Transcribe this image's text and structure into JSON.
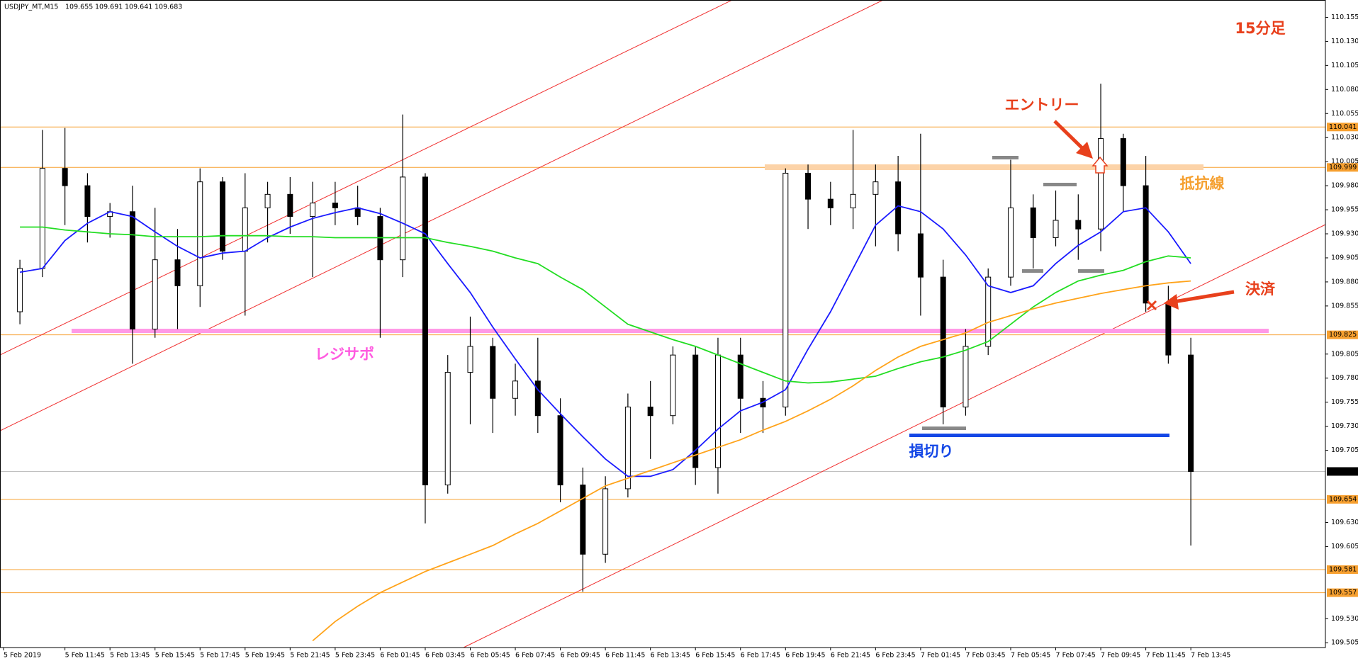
{
  "chart_data": {
    "type": "candlestick",
    "title": "USDJPY_MT,M15",
    "header_values": [
      109.655,
      109.691,
      109.641,
      109.683
    ],
    "categories": [
      "5 Feb 2019",
      null,
      "5 Feb 11:45",
      null,
      "5 Feb 13:45",
      null,
      "5 Feb 15:45",
      null,
      "5 Feb 17:45",
      null,
      "5 Feb 19:45",
      null,
      "5 Feb 21:45",
      null,
      "5 Feb 23:45",
      null,
      "6 Feb 01:45",
      null,
      "6 Feb 03:45",
      null,
      "6 Feb 05:45",
      null,
      "6 Feb 07:45",
      null,
      "6 Feb 09:45",
      null,
      "6 Feb 11:45",
      null,
      "6 Feb 13:45",
      null,
      "6 Feb 15:45",
      null,
      "6 Feb 17:45",
      null,
      "6 Feb 19:45",
      null,
      "6 Feb 21:45",
      null,
      "6 Feb 23:45",
      null,
      "7 Feb 01:45",
      null,
      "7 Feb 03:45",
      null,
      "7 Feb 05:45",
      null,
      "7 Feb 07:45",
      null,
      "7 Feb 09:45",
      null,
      "7 Feb 11:45",
      null,
      "7 Feb 13:45"
    ],
    "open": [
      109.849,
      109.894,
      109.998,
      109.98,
      109.948,
      109.953,
      109.831,
      109.903,
      109.876,
      109.984,
      109.912,
      109.957,
      109.971,
      109.948,
      109.962,
      109.957,
      109.948,
      109.903,
      109.989,
      109.669,
      109.786,
      109.813,
      109.759,
      109.777,
      109.741,
      109.669,
      109.597,
      109.665,
      109.75,
      109.741,
      109.804,
      109.687,
      109.804,
      109.759,
      109.75,
      109.993,
      109.966,
      109.957,
      109.971,
      109.984,
      109.93,
      109.885,
      109.75,
      109.813,
      109.885,
      109.957,
      109.926,
      109.944,
      109.935,
      110.029,
      109.98,
      109.858,
      109.804
    ],
    "high": [
      109.903,
      110.038,
      110.04,
      109.993,
      109.962,
      109.98,
      109.957,
      109.935,
      109.998,
      109.989,
      109.993,
      109.984,
      109.989,
      109.984,
      109.984,
      109.98,
      109.957,
      110.054,
      109.993,
      109.804,
      109.844,
      109.822,
      109.795,
      109.822,
      109.759,
      109.687,
      109.678,
      109.764,
      109.777,
      109.813,
      109.813,
      109.822,
      109.822,
      109.777,
      109.998,
      110.002,
      109.984,
      110.038,
      110.002,
      110.011,
      110.034,
      109.903,
      109.831,
      109.894,
      110.007,
      109.971,
      109.975,
      109.971,
      110.086,
      110.034,
      110.011,
      109.876,
      109.822
    ],
    "low": [
      109.836,
      109.885,
      109.939,
      109.921,
      109.926,
      109.795,
      109.822,
      109.831,
      109.854,
      109.903,
      109.845,
      109.921,
      109.93,
      109.885,
      109.939,
      109.939,
      109.822,
      109.885,
      109.629,
      109.66,
      109.732,
      109.723,
      109.741,
      109.723,
      109.651,
      109.558,
      109.588,
      109.656,
      109.696,
      109.732,
      109.669,
      109.66,
      109.723,
      109.723,
      109.741,
      109.935,
      109.939,
      109.935,
      109.917,
      109.912,
      109.845,
      109.732,
      109.741,
      109.804,
      109.876,
      109.894,
      109.917,
      109.903,
      109.912,
      109.953,
      109.849,
      109.795,
      109.606
    ],
    "close": [
      109.894,
      109.998,
      109.98,
      109.948,
      109.953,
      109.831,
      109.903,
      109.876,
      109.984,
      109.912,
      109.957,
      109.971,
      109.948,
      109.962,
      109.957,
      109.948,
      109.903,
      109.989,
      109.669,
      109.786,
      109.813,
      109.759,
      109.777,
      109.741,
      109.669,
      109.597,
      109.665,
      109.75,
      109.741,
      109.804,
      109.687,
      109.804,
      109.759,
      109.75,
      109.993,
      109.966,
      109.957,
      109.971,
      109.984,
      109.93,
      109.885,
      109.75,
      109.813,
      109.885,
      109.957,
      109.926,
      109.944,
      109.935,
      110.029,
      109.98,
      109.858,
      109.804,
      109.683
    ],
    "up_color": "#ffffff",
    "down_color": "#000000",
    "lines": [
      {
        "color": "#1a1aff",
        "values": [
          109.89,
          109.894,
          109.923,
          109.941,
          109.953,
          109.948,
          109.932,
          109.917,
          109.905,
          109.91,
          109.912,
          109.926,
          109.937,
          109.946,
          109.952,
          109.957,
          109.951,
          109.941,
          109.93,
          109.899,
          109.869,
          109.833,
          109.8,
          109.768,
          109.743,
          109.719,
          109.696,
          109.678,
          109.678,
          109.685,
          109.705,
          109.727,
          109.746,
          109.755,
          109.768,
          109.81,
          109.849,
          109.894,
          109.939,
          109.959,
          109.953,
          109.935,
          109.908,
          109.876,
          109.869,
          109.876,
          109.899,
          109.918,
          109.932,
          109.953,
          109.957,
          109.932,
          109.899
        ]
      },
      {
        "color": "#22dd22",
        "values": [
          109.937,
          109.937,
          109.934,
          109.932,
          109.93,
          109.929,
          109.927,
          109.927,
          109.927,
          109.928,
          109.928,
          109.928,
          109.927,
          109.927,
          109.926,
          109.926,
          109.926,
          109.926,
          109.926,
          109.921,
          109.917,
          109.912,
          109.905,
          109.899,
          109.885,
          109.872,
          109.854,
          109.836,
          109.828,
          109.82,
          109.813,
          109.804,
          109.795,
          109.786,
          109.777,
          109.775,
          109.776,
          109.779,
          109.782,
          109.79,
          109.797,
          109.802,
          109.809,
          109.818,
          109.836,
          109.854,
          109.869,
          109.881,
          109.887,
          109.892,
          109.901,
          109.907,
          109.905
        ]
      },
      {
        "color": "#ffa31a",
        "values": [
          null,
          null,
          null,
          null,
          null,
          null,
          null,
          null,
          null,
          null,
          null,
          null,
          null,
          109.507,
          109.527,
          109.543,
          109.557,
          109.568,
          109.579,
          109.588,
          109.597,
          109.606,
          109.618,
          109.629,
          109.642,
          109.655,
          109.668,
          109.676,
          109.684,
          109.692,
          109.7,
          109.708,
          109.716,
          109.726,
          109.735,
          109.746,
          109.758,
          109.772,
          109.788,
          109.802,
          109.813,
          109.82,
          109.827,
          109.838,
          109.845,
          109.852,
          109.858,
          109.863,
          109.868,
          109.872,
          109.876,
          109.879,
          109.881
        ]
      }
    ],
    "ylim": [
      109.5,
      110.173
    ],
    "yticks": [
      110.155,
      {
        "value": 110.13,
        "label": "110.130"
      },
      110.105,
      {
        "value": 110.08,
        "label": "110.080"
      },
      110.055,
      {
        "value": 110.03,
        "label": "110.030"
      },
      110.005,
      {
        "value": 109.98,
        "label": "109.980"
      },
      109.955,
      {
        "value": 109.93,
        "label": "109.930"
      },
      109.905,
      {
        "value": 109.88,
        "label": "109.880"
      },
      109.855,
      109.805,
      {
        "value": 109.78,
        "label": "109.780"
      },
      109.755,
      {
        "value": 109.73,
        "label": "109.730"
      },
      109.705,
      {
        "value": 109.63,
        "label": "109.630"
      },
      109.605,
      {
        "value": 109.53,
        "label": "109.530"
      },
      109.505
    ],
    "levels": [
      110.041,
      109.999,
      109.825,
      109.654,
      109.581,
      109.557
    ],
    "level_color": "#f7a030",
    "current_price": 109.683,
    "annotations": {
      "timeframe": "15分足",
      "entry": "エントリー",
      "exit": "決済",
      "resistance": "抵抗線",
      "support": "レジサポ",
      "stop": "損切り"
    }
  }
}
